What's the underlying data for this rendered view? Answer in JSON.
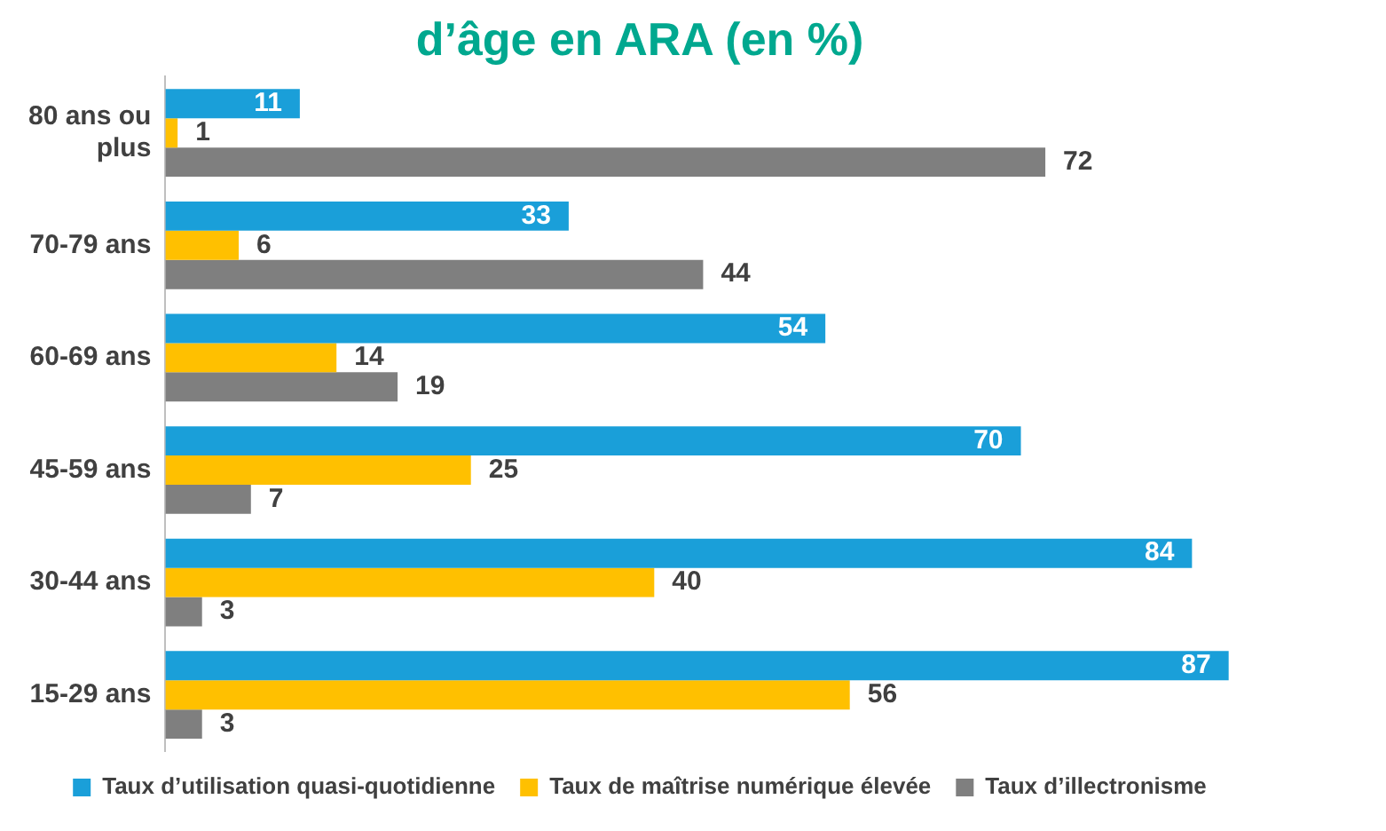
{
  "chart_data": {
    "type": "bar",
    "orientation": "horizontal",
    "title": "d’âge en ARA (en %)",
    "categories": [
      "80 ans ou plus",
      "70-79 ans",
      "60-69 ans",
      "45-59 ans",
      "30-44 ans",
      "15-29 ans"
    ],
    "series": [
      {
        "name": "Taux d’utilisation quasi-quotidienne",
        "color": "#1a9fd9",
        "values": [
          11,
          33,
          54,
          70,
          84,
          87
        ]
      },
      {
        "name": "Taux de maîtrise numérique élevée",
        "color": "#ffc000",
        "values": [
          1,
          6,
          14,
          25,
          40,
          56
        ]
      },
      {
        "name": "Taux d’illectronisme",
        "color": "#7f7f7f",
        "values": [
          72,
          44,
          19,
          7,
          3,
          3
        ]
      }
    ],
    "tick_labels": "y",
    "data_labels": true,
    "grid": false,
    "legend": "bottom"
  }
}
